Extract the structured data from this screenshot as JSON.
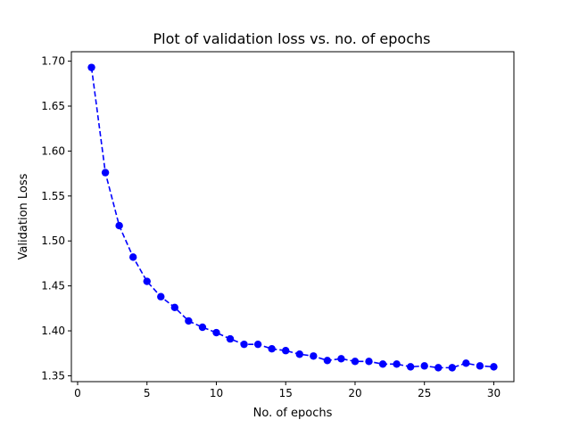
{
  "chart_data": {
    "type": "line",
    "title": "Plot of validation loss vs. no. of epochs",
    "xlabel": "No. of epochs",
    "ylabel": "Validation Loss",
    "xlim": [
      -0.45,
      31.45
    ],
    "ylim": [
      1.3435,
      1.7105
    ],
    "xticks": [
      0,
      5,
      10,
      15,
      20,
      25,
      30
    ],
    "xtick_labels": [
      "0",
      "5",
      "10",
      "15",
      "20",
      "25",
      "30"
    ],
    "yticks": [
      1.35,
      1.4,
      1.45,
      1.5,
      1.55,
      1.6,
      1.65,
      1.7
    ],
    "ytick_labels": [
      "1.35",
      "1.40",
      "1.45",
      "1.50",
      "1.55",
      "1.60",
      "1.65",
      "1.70"
    ],
    "grid": false,
    "series": [
      {
        "name": "validation loss",
        "color": "#0000ff",
        "line_style": "dashed",
        "marker": "circle",
        "x": [
          1,
          2,
          3,
          4,
          5,
          6,
          7,
          8,
          9,
          10,
          11,
          12,
          13,
          14,
          15,
          16,
          17,
          18,
          19,
          20,
          21,
          22,
          23,
          24,
          25,
          26,
          27,
          28,
          29,
          30
        ],
        "values": [
          1.693,
          1.576,
          1.517,
          1.482,
          1.455,
          1.438,
          1.426,
          1.411,
          1.404,
          1.398,
          1.391,
          1.385,
          1.385,
          1.38,
          1.378,
          1.374,
          1.372,
          1.367,
          1.369,
          1.366,
          1.366,
          1.363,
          1.363,
          1.36,
          1.361,
          1.359,
          1.359,
          1.364,
          1.361,
          1.36
        ]
      }
    ]
  }
}
